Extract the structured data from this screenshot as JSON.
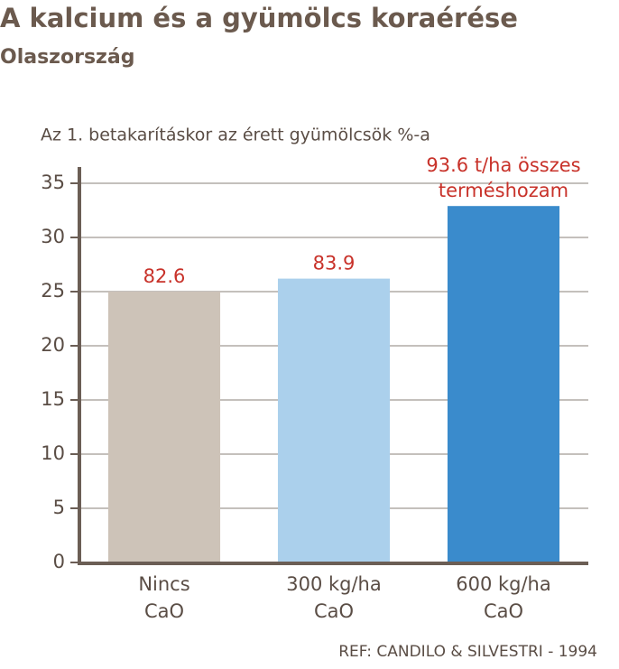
{
  "chart_data": {
    "type": "bar",
    "title": "A kalcium és a gyümölcs koraérése",
    "subtitle": "Olaszország",
    "y_label": "Az 1. betakarításkor az érett gyümölcsök %-a",
    "categories": [
      [
        "Nincs",
        "CaO"
      ],
      [
        "300 kg/ha",
        "CaO"
      ],
      [
        "600 kg/ha",
        "CaO"
      ]
    ],
    "values": [
      25,
      26.2,
      32.9
    ],
    "colors": [
      "#cdc3b8",
      "#abd0ec",
      "#3a8bcc"
    ],
    "annotations": [
      [
        "82.6"
      ],
      [
        "83.9"
      ],
      [
        "93.6 t/ha összes",
        "terméshozam"
      ]
    ],
    "ylim": [
      0,
      35
    ],
    "yticks": [
      0,
      5,
      10,
      15,
      20,
      25,
      30,
      35
    ],
    "grid": true,
    "source": "REF: CANDILO & SILVESTRI - 1994"
  }
}
